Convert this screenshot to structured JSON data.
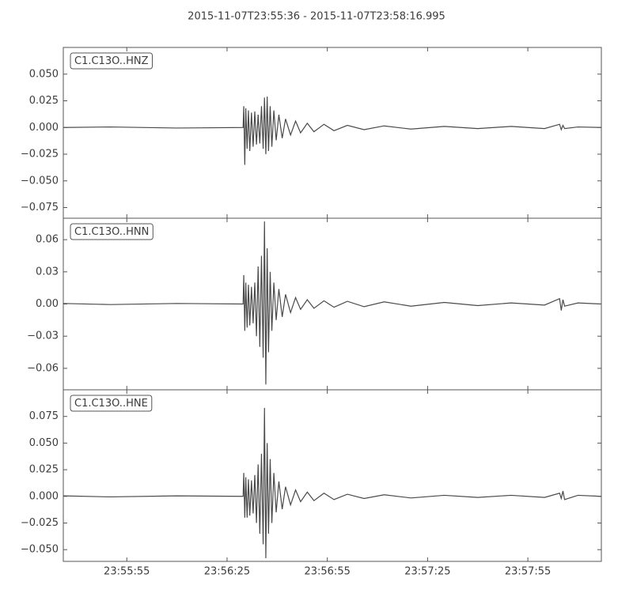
{
  "chart_data": [
    {
      "type": "line",
      "title": "2015-11-07T23:55:36  -  2015-11-07T23:58:16.995",
      "x": [
        86136,
        86150,
        86170,
        86189.8,
        86190,
        86190.3,
        86190.6,
        86191,
        86191.4,
        86191.8,
        86192.3,
        86192.8,
        86193.3,
        86193.8,
        86194.3,
        86194.8,
        86195.3,
        86195.8,
        86196.2,
        86196.6,
        86197,
        86197.4,
        86197.9,
        86198.4,
        86199,
        86199.7,
        86200.5,
        86201.5,
        86202.5,
        86204,
        86205.5,
        86207,
        86209,
        86211,
        86214,
        86217,
        86221,
        86226,
        86232,
        86240,
        86250,
        86260,
        86270,
        86280,
        86284.5,
        86285,
        86285.5,
        86286,
        86290,
        86296.995
      ],
      "series": [
        {
          "name": "C1.C13O..HNZ",
          "color": "#4a4a4a",
          "values": [
            0,
            0.0005,
            -0.0005,
            0,
            0.02,
            -0.035,
            0.018,
            -0.02,
            0.016,
            -0.022,
            0.014,
            -0.018,
            0.015,
            -0.016,
            0.012,
            -0.015,
            0.02,
            -0.02,
            0.028,
            -0.025,
            0.029,
            -0.022,
            0.02,
            -0.018,
            0.016,
            -0.012,
            0.012,
            -0.01,
            0.008,
            -0.007,
            0.006,
            -0.005,
            0.004,
            -0.004,
            0.003,
            -0.003,
            0.002,
            -0.002,
            0.0015,
            -0.0015,
            0.001,
            -0.001,
            0.001,
            -0.001,
            0.003,
            -0.002,
            0.002,
            -0.001,
            0.0005,
            0
          ]
        }
      ],
      "xlim": [
        86136,
        86296.995
      ],
      "ylim": [
        -0.085,
        0.075
      ],
      "yticks": [
        {
          "value": -0.075,
          "label": "−0.075"
        },
        {
          "value": -0.05,
          "label": "−0.050"
        },
        {
          "value": -0.025,
          "label": "−0.025"
        },
        {
          "value": 0,
          "label": "0.000"
        },
        {
          "value": 0.025,
          "label": "0.025"
        },
        {
          "value": 0.05,
          "label": "0.050"
        }
      ]
    },
    {
      "type": "line",
      "x": [
        86136,
        86150,
        86170,
        86189.8,
        86190,
        86190.3,
        86190.6,
        86191,
        86191.4,
        86191.8,
        86192.3,
        86192.8,
        86193.3,
        86193.8,
        86194.3,
        86194.8,
        86195.3,
        86195.8,
        86196.2,
        86196.6,
        86197,
        86197.4,
        86197.9,
        86198.4,
        86199,
        86199.7,
        86200.5,
        86201.5,
        86202.5,
        86204,
        86205.5,
        86207,
        86209,
        86211,
        86214,
        86217,
        86221,
        86226,
        86232,
        86240,
        86250,
        86260,
        86270,
        86280,
        86284.5,
        86285,
        86285.5,
        86286,
        86290,
        86296.995
      ],
      "series": [
        {
          "name": "C1.C13O..HNN",
          "color": "#4a4a4a",
          "values": [
            0.0005,
            -0.0005,
            0.0005,
            0,
            0.027,
            -0.025,
            0.02,
            -0.022,
            0.018,
            -0.02,
            0.016,
            -0.018,
            0.02,
            -0.03,
            0.035,
            -0.04,
            0.045,
            -0.05,
            0.077,
            -0.075,
            0.052,
            -0.045,
            0.03,
            -0.025,
            0.02,
            -0.015,
            0.014,
            -0.012,
            0.009,
            -0.008,
            0.006,
            -0.005,
            0.004,
            -0.004,
            0.003,
            -0.003,
            0.0025,
            -0.0025,
            0.002,
            -0.002,
            0.0015,
            -0.0015,
            0.001,
            -0.001,
            0.005,
            -0.006,
            0.004,
            -0.002,
            0.001,
            0
          ]
        }
      ],
      "xlim": [
        86136,
        86296.995
      ],
      "ylim": [
        -0.08,
        0.08
      ],
      "yticks": [
        {
          "value": -0.06,
          "label": "−0.06"
        },
        {
          "value": -0.03,
          "label": "−0.03"
        },
        {
          "value": 0,
          "label": "0.00"
        },
        {
          "value": 0.03,
          "label": "0.03"
        },
        {
          "value": 0.06,
          "label": "0.06"
        }
      ]
    },
    {
      "type": "line",
      "x": [
        86136,
        86150,
        86170,
        86189.8,
        86190,
        86190.3,
        86190.6,
        86191,
        86191.4,
        86191.8,
        86192.3,
        86192.8,
        86193.3,
        86193.8,
        86194.3,
        86194.8,
        86195.3,
        86195.8,
        86196.2,
        86196.6,
        86197,
        86197.4,
        86197.9,
        86198.4,
        86199,
        86199.7,
        86200.5,
        86201.5,
        86202.5,
        86204,
        86205.5,
        86207,
        86209,
        86211,
        86214,
        86217,
        86221,
        86226,
        86232,
        86240,
        86250,
        86260,
        86270,
        86280,
        86284.5,
        86285,
        86285.5,
        86286,
        86290,
        86296.995
      ],
      "series": [
        {
          "name": "C1.C13O..HNE",
          "color": "#4a4a4a",
          "values": [
            0.0005,
            -0.0005,
            0.0005,
            0,
            0.022,
            -0.02,
            0.018,
            -0.02,
            0.016,
            -0.018,
            0.015,
            -0.016,
            0.02,
            -0.025,
            0.03,
            -0.035,
            0.04,
            -0.045,
            0.083,
            -0.058,
            0.05,
            -0.035,
            0.035,
            -0.025,
            0.022,
            -0.015,
            0.014,
            -0.012,
            0.009,
            -0.008,
            0.006,
            -0.005,
            0.004,
            -0.004,
            0.003,
            -0.003,
            0.002,
            -0.002,
            0.0015,
            -0.0015,
            0.001,
            -0.001,
            0.001,
            -0.001,
            0.003,
            -0.002,
            0.005,
            -0.003,
            0.001,
            0
          ]
        }
      ],
      "xlim": [
        86136,
        86296.995
      ],
      "ylim": [
        -0.061,
        0.1
      ],
      "yticks": [
        {
          "value": -0.05,
          "label": "−0.050"
        },
        {
          "value": -0.025,
          "label": "−0.025"
        },
        {
          "value": 0,
          "label": "0.000"
        },
        {
          "value": 0.025,
          "label": "0.025"
        },
        {
          "value": 0.05,
          "label": "0.050"
        },
        {
          "value": 0.075,
          "label": "0.075"
        }
      ],
      "xticks": [
        {
          "value": 86155,
          "label": "23:55:55"
        },
        {
          "value": 86185,
          "label": "23:56:25"
        },
        {
          "value": 86215,
          "label": "23:56:55"
        },
        {
          "value": 86245,
          "label": "23:57:25"
        },
        {
          "value": 86275,
          "label": "23:57:55"
        }
      ]
    }
  ]
}
